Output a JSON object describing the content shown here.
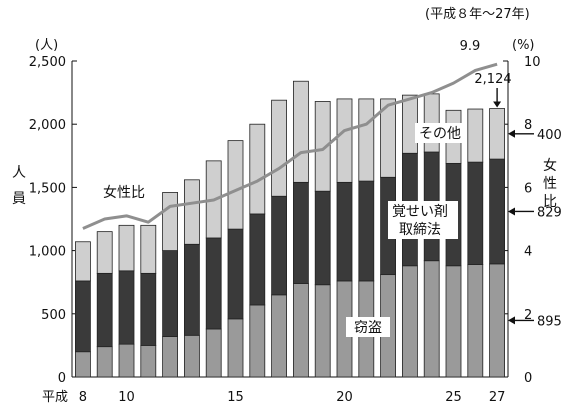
{
  "chart_data": {
    "type": "bar",
    "subtitle": "(平成８年～27年)",
    "x": [
      8,
      9,
      10,
      11,
      12,
      13,
      14,
      15,
      16,
      17,
      18,
      19,
      20,
      21,
      22,
      23,
      24,
      25,
      26,
      27
    ],
    "x_tick_labels": [
      {
        "x": 8,
        "label": "8"
      },
      {
        "x": 10,
        "label": "10"
      },
      {
        "x": 15,
        "label": "15"
      },
      {
        "x": 20,
        "label": "20"
      },
      {
        "x": 25,
        "label": "25"
      },
      {
        "x": 27,
        "label": "27"
      }
    ],
    "x_prefix": "平成",
    "ylabel_left": "人員",
    "ylabel_left_unit": "(人)",
    "ylim_left": [
      0,
      2500
    ],
    "yticks_left": [
      "0",
      "500",
      "1,000",
      "1,500",
      "2,000",
      "2,500"
    ],
    "ylabel_right": "女性比",
    "ylabel_right_unit": "(%)",
    "ylim_right": [
      0,
      10
    ],
    "yticks_right": [
      "0",
      "2",
      "4",
      "6",
      "8",
      "10"
    ],
    "series": [
      {
        "name": "窃盗",
        "color": "#9a9a9a",
        "values": [
          200,
          240,
          260,
          250,
          320,
          330,
          380,
          460,
          570,
          650,
          740,
          730,
          760,
          760,
          810,
          880,
          920,
          880,
          890,
          895
        ]
      },
      {
        "name": "覚せい剤取締法",
        "color": "#3a3a3a",
        "values": [
          560,
          580,
          580,
          570,
          680,
          720,
          720,
          710,
          720,
          780,
          800,
          740,
          780,
          790,
          770,
          890,
          860,
          810,
          810,
          829
        ]
      },
      {
        "name": "その他",
        "color": "#cfcfcf",
        "values": [
          310,
          330,
          360,
          380,
          460,
          510,
          610,
          700,
          710,
          760,
          800,
          710,
          660,
          650,
          620,
          460,
          460,
          420,
          420,
          400
        ]
      }
    ],
    "line": {
      "name": "女性比",
      "color": "#8f8f8f",
      "values": [
        4.7,
        5.0,
        5.1,
        4.9,
        5.4,
        5.5,
        5.6,
        5.9,
        6.2,
        6.6,
        7.1,
        7.2,
        7.8,
        8.0,
        8.6,
        8.8,
        9.0,
        9.3,
        9.7,
        9.9
      ]
    },
    "annotations": {
      "line_end": "9.9",
      "total_end": "2,124",
      "other_end": "400",
      "drug_end": "829",
      "theft_end": "895"
    },
    "grid": false,
    "legend": "inline"
  }
}
